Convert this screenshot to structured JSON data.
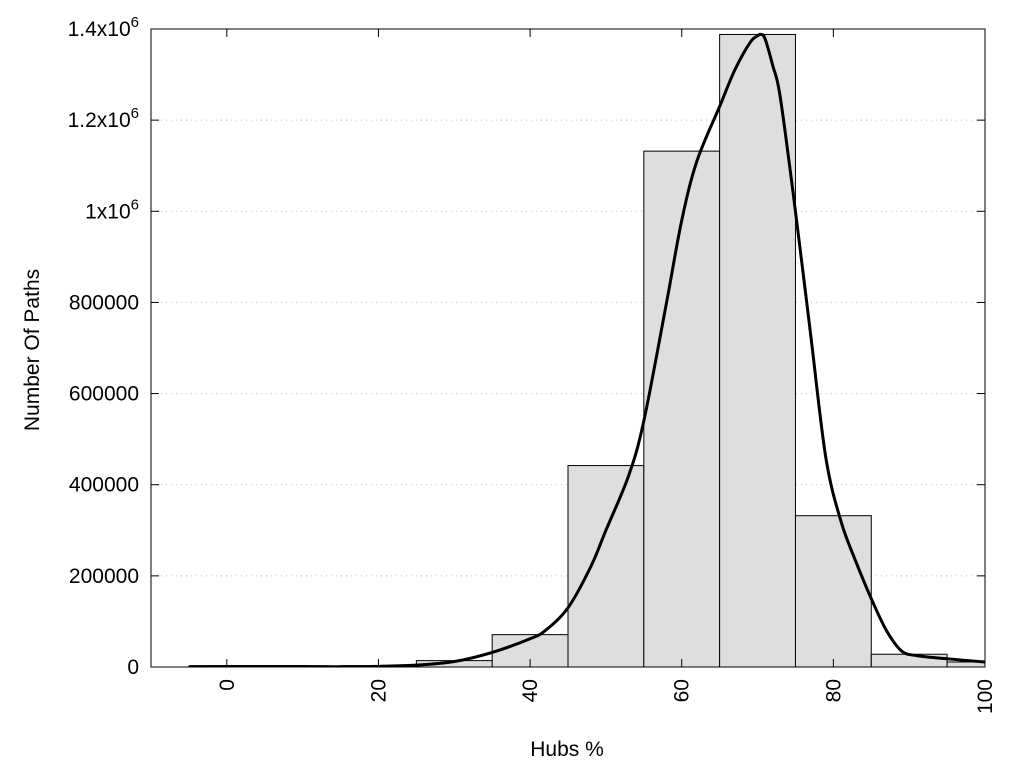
{
  "chart_data": {
    "type": "bar",
    "title": "",
    "xlabel": "Hubs %",
    "ylabel": "Number Of Paths",
    "xlim": [
      -10,
      100
    ],
    "ylim": [
      0,
      1400000
    ],
    "x_ticks": [
      {
        "value": 0,
        "label": "0"
      },
      {
        "value": 20,
        "label": "20"
      },
      {
        "value": 40,
        "label": "40"
      },
      {
        "value": 60,
        "label": "60"
      },
      {
        "value": 80,
        "label": "80"
      },
      {
        "value": 100,
        "label": "100"
      }
    ],
    "y_ticks": [
      {
        "value": 0,
        "label": "0"
      },
      {
        "value": 200000,
        "label": "200000"
      },
      {
        "value": 400000,
        "label": "400000"
      },
      {
        "value": 600000,
        "label": "600000"
      },
      {
        "value": 800000,
        "label": "800000"
      },
      {
        "value": 1000000,
        "label": "1x10",
        "sup": "6"
      },
      {
        "value": 1200000,
        "label": "1.2x10",
        "sup": "6"
      },
      {
        "value": 1400000,
        "label": "1.4x10",
        "sup": "6"
      }
    ],
    "grid": {
      "horizontal": true,
      "style": "dotted"
    },
    "bars": {
      "width": 10,
      "centers": [
        0,
        10,
        20,
        30,
        40,
        50,
        60,
        70,
        80,
        90,
        100
      ],
      "values": [
        1500,
        2000,
        3000,
        14000,
        71000,
        442000,
        1132000,
        1388000,
        332000,
        28000,
        11000
      ],
      "fill": "#dedede",
      "stroke": "#000000"
    },
    "curve": {
      "points": [
        [
          -5,
          800
        ],
        [
          0,
          1000
        ],
        [
          10,
          1200
        ],
        [
          15,
          500
        ],
        [
          20,
          1500
        ],
        [
          25,
          4000
        ],
        [
          30,
          12000
        ],
        [
          35,
          32000
        ],
        [
          40,
          62000
        ],
        [
          42,
          80000
        ],
        [
          45,
          130000
        ],
        [
          48,
          220000
        ],
        [
          50,
          300000
        ],
        [
          53,
          420000
        ],
        [
          55,
          540000
        ],
        [
          58,
          800000
        ],
        [
          60,
          980000
        ],
        [
          62,
          1110000
        ],
        [
          65,
          1230000
        ],
        [
          67,
          1310000
        ],
        [
          69,
          1370000
        ],
        [
          70,
          1385000
        ],
        [
          70.5,
          1388000
        ],
        [
          71,
          1378000
        ],
        [
          72,
          1320000
        ],
        [
          73,
          1250000
        ],
        [
          75,
          1000000
        ],
        [
          77,
          730000
        ],
        [
          79,
          460000
        ],
        [
          81,
          320000
        ],
        [
          83,
          230000
        ],
        [
          85,
          150000
        ],
        [
          87,
          80000
        ],
        [
          89,
          35000
        ],
        [
          91,
          25000
        ],
        [
          95,
          18000
        ],
        [
          100,
          11000
        ]
      ],
      "color": "#000000"
    },
    "legend": null
  }
}
